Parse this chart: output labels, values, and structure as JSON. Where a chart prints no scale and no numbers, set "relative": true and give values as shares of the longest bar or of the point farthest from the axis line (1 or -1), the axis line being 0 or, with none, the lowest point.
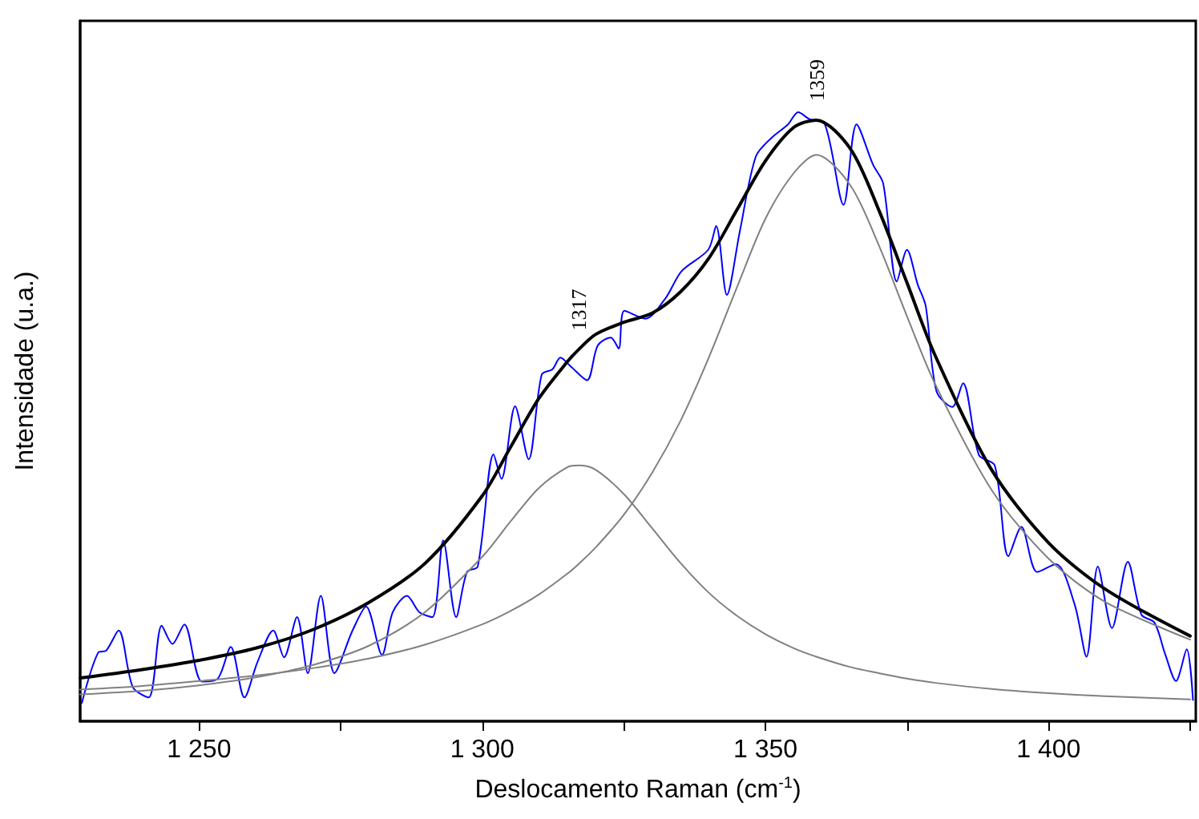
{
  "chart_data": {
    "type": "line",
    "relative": true,
    "xlabel": "Deslocamento Raman (cm$^{-1}$)",
    "ylabel": "Intensidade (u.a.)",
    "xlim": [
      1229,
      1426
    ],
    "xticks": [
      {
        "value": 1250,
        "label": "1 250"
      },
      {
        "value": 1275,
        "label": null
      },
      {
        "value": 1300,
        "label": "1 300"
      },
      {
        "value": 1325,
        "label": null
      },
      {
        "value": 1350,
        "label": "1 350"
      },
      {
        "value": 1375,
        "label": null
      },
      {
        "value": 1400,
        "label": "1 400"
      },
      {
        "value": 1425,
        "label": null
      }
    ],
    "tick_labels": "x",
    "grid": false,
    "annotations": [
      {
        "text": "1317",
        "x": 1317,
        "y": 0.61
      },
      {
        "text": "1359",
        "x": 1359,
        "y": 0.987
      }
    ],
    "series": [
      {
        "color": "#0000ff",
        "x": [
          1229.3,
          1232.2,
          1233.6,
          1235.8,
          1238.3,
          1241.1,
          1243.4,
          1245.3,
          1247.4,
          1250.5,
          1253.3,
          1255.6,
          1258,
          1260.3,
          1263.1,
          1265,
          1267.3,
          1269.2,
          1271.5,
          1273.9,
          1277.1,
          1279.5,
          1282.3,
          1284.2,
          1286.7,
          1288.9,
          1291.2,
          1293.1,
          1295.4,
          1297.3,
          1299.2,
          1302,
          1303.4,
          1305.8,
          1308.2,
          1310.5,
          1312.4,
          1313.8,
          1315.7,
          1318.5,
          1320.4,
          1322.7,
          1324.1,
          1325.1,
          1328.8,
          1332.4,
          1335.2,
          1339.9,
          1341.3,
          1343.2,
          1345.5,
          1348.3,
          1351.1,
          1354,
          1355.8,
          1357.7,
          1360.5,
          1363.8,
          1366.1,
          1369,
          1370.8,
          1373.2,
          1375,
          1376.9,
          1378.3,
          1380.2,
          1383,
          1384.9,
          1387.7,
          1390.5,
          1392.9,
          1395.2,
          1398,
          1401.3,
          1404.6,
          1406.7,
          1408.7,
          1411.2,
          1414,
          1416.4,
          1418.7,
          1420.6,
          1422.5,
          1424.4,
          1425.5
        ],
        "values": [
          0.03,
          0.113,
          0.116,
          0.149,
          0.056,
          0.039,
          0.157,
          0.127,
          0.159,
          0.065,
          0.07,
          0.122,
          0.039,
          0.097,
          0.149,
          0.105,
          0.171,
          0.079,
          0.206,
          0.079,
          0.149,
          0.188,
          0.109,
          0.179,
          0.206,
          0.179,
          0.171,
          0.297,
          0.171,
          0.245,
          0.254,
          0.438,
          0.398,
          0.517,
          0.43,
          0.569,
          0.578,
          0.597,
          0.582,
          0.56,
          0.617,
          0.63,
          0.612,
          0.674,
          0.661,
          0.695,
          0.739,
          0.774,
          0.813,
          0.7,
          0.805,
          0.927,
          0.958,
          0.98,
          1.0,
          0.989,
          0.98,
          0.848,
          0.98,
          0.914,
          0.883,
          0.722,
          0.774,
          0.717,
          0.682,
          0.542,
          0.516,
          0.555,
          0.437,
          0.42,
          0.271,
          0.319,
          0.245,
          0.258,
          0.192,
          0.106,
          0.254,
          0.153,
          0.262,
          0.175,
          0.162,
          0.11,
          0.066,
          0.118,
          0.035
        ]
      },
      {
        "color": "#808080",
        "x": [
          1229,
          1240,
          1250,
          1260,
          1270,
          1280,
          1290,
          1300,
          1305,
          1310,
          1315,
          1317,
          1320,
          1325,
          1330,
          1335,
          1340,
          1345,
          1350,
          1355,
          1359,
          1365,
          1370,
          1375,
          1380,
          1390,
          1400,
          1410,
          1425
        ],
        "values": [
          0.044,
          0.05,
          0.059,
          0.072,
          0.092,
          0.124,
          0.18,
          0.27,
          0.328,
          0.383,
          0.417,
          0.42,
          0.413,
          0.373,
          0.317,
          0.26,
          0.211,
          0.173,
          0.143,
          0.12,
          0.106,
          0.089,
          0.079,
          0.07,
          0.063,
          0.053,
          0.046,
          0.041,
          0.036
        ]
      },
      {
        "color": "#808080",
        "x": [
          1229,
          1240,
          1250,
          1260,
          1270,
          1280,
          1290,
          1300,
          1305,
          1310,
          1315,
          1317,
          1320,
          1325,
          1330,
          1335,
          1340,
          1345,
          1350,
          1355,
          1359,
          1365,
          1370,
          1375,
          1380,
          1390,
          1400,
          1410,
          1425
        ],
        "values": [
          0.052,
          0.058,
          0.066,
          0.075,
          0.087,
          0.103,
          0.126,
          0.159,
          0.181,
          0.208,
          0.242,
          0.258,
          0.285,
          0.339,
          0.408,
          0.493,
          0.597,
          0.713,
          0.825,
          0.9,
          0.93,
          0.88,
          0.782,
          0.665,
          0.553,
          0.379,
          0.267,
          0.196,
          0.134
        ]
      },
      {
        "color": "#000000",
        "x": [
          1229,
          1240,
          1250,
          1260,
          1270,
          1280,
          1290,
          1300,
          1305,
          1310,
          1315,
          1317,
          1320,
          1325,
          1330,
          1335,
          1340,
          1345,
          1350,
          1355,
          1359,
          1365,
          1370,
          1375,
          1380,
          1390,
          1400,
          1410,
          1425
        ],
        "values": [
          0.071,
          0.085,
          0.1,
          0.12,
          0.15,
          0.195,
          0.26,
          0.37,
          0.45,
          0.53,
          0.59,
          0.61,
          0.635,
          0.655,
          0.67,
          0.705,
          0.76,
          0.84,
          0.92,
          0.975,
          0.987,
          0.94,
          0.84,
          0.72,
          0.6,
          0.412,
          0.293,
          0.217,
          0.14
        ]
      }
    ]
  }
}
